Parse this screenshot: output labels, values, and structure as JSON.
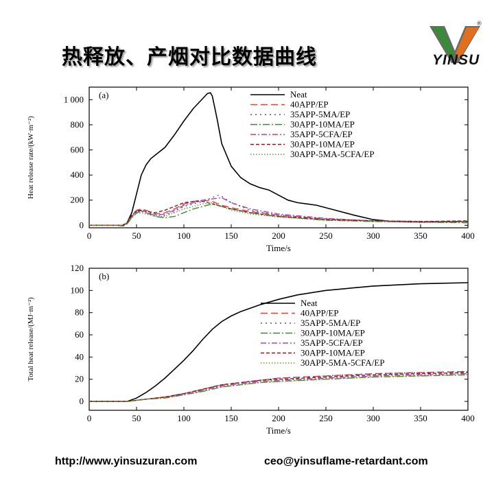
{
  "page": {
    "title": "热释放、产烟对比数据曲线",
    "brand": "YINSU",
    "registered_mark": "®",
    "footer_url": "http://www.yinsuzuran.com",
    "footer_email": "ceo@yinsuflame-retardant.com"
  },
  "colors": {
    "logo_green": "#3a8a3a",
    "logo_orange": "#e07020",
    "logo_gray": "#6a6a6a"
  },
  "chart_data": [
    {
      "type": "line",
      "panel_label": "(a)",
      "xlabel": "Time/s",
      "ylabel": "Heat release rate/(kW·m⁻²)",
      "xlim": [
        0,
        400
      ],
      "ylim": [
        -20,
        1100
      ],
      "xticks": [
        0,
        50,
        100,
        150,
        200,
        250,
        300,
        350,
        400
      ],
      "yticks": [
        0,
        200,
        400,
        600,
        800,
        1000
      ],
      "ytick_labels": [
        "0",
        "200",
        "400",
        "600",
        "800",
        "1 000"
      ],
      "legend_position": "top-right",
      "series": [
        {
          "name": "Neat",
          "color": "#000000",
          "dash": "",
          "x": [
            0,
            30,
            36,
            40,
            45,
            50,
            55,
            60,
            65,
            70,
            80,
            90,
            100,
            110,
            120,
            125,
            128,
            130,
            135,
            140,
            150,
            160,
            170,
            180,
            190,
            200,
            210,
            220,
            230,
            240,
            260,
            280,
            300,
            320,
            350,
            380,
            400
          ],
          "y": [
            0,
            0,
            -3,
            20,
            100,
            250,
            400,
            480,
            530,
            560,
            620,
            720,
            830,
            930,
            1010,
            1050,
            1055,
            1030,
            850,
            650,
            470,
            380,
            330,
            300,
            280,
            240,
            200,
            180,
            170,
            160,
            120,
            80,
            45,
            30,
            25,
            28,
            30
          ]
        },
        {
          "name": "40APP/EP",
          "color": "#d9443a",
          "dash": "10,5",
          "x": [
            0,
            35,
            40,
            45,
            50,
            55,
            60,
            70,
            80,
            90,
            100,
            110,
            120,
            130,
            140,
            150,
            170,
            200,
            250,
            300,
            350,
            400
          ],
          "y": [
            0,
            0,
            20,
            80,
            120,
            130,
            120,
            90,
            100,
            130,
            170,
            190,
            200,
            190,
            160,
            140,
            110,
            80,
            50,
            35,
            30,
            30
          ]
        },
        {
          "name": "35APP-5MA/EP",
          "color": "#4a4ab8",
          "dash": "2,5",
          "x": [
            0,
            35,
            40,
            45,
            50,
            55,
            60,
            70,
            80,
            90,
            100,
            110,
            120,
            130,
            135,
            140,
            150,
            170,
            200,
            250,
            300,
            350,
            400
          ],
          "y": [
            0,
            0,
            15,
            70,
            110,
            120,
            110,
            80,
            80,
            110,
            150,
            170,
            190,
            220,
            240,
            230,
            180,
            120,
            80,
            50,
            35,
            30,
            30
          ]
        },
        {
          "name": "30APP-10MA/EP",
          "color": "#2f8f2f",
          "dash": "10,3,2,3",
          "x": [
            0,
            35,
            40,
            45,
            50,
            55,
            60,
            70,
            80,
            90,
            100,
            110,
            120,
            130,
            140,
            150,
            170,
            200,
            250,
            300,
            350,
            400
          ],
          "y": [
            0,
            0,
            10,
            60,
            100,
            110,
            100,
            70,
            60,
            70,
            100,
            130,
            150,
            170,
            150,
            130,
            100,
            70,
            40,
            30,
            25,
            20
          ]
        },
        {
          "name": "35APP-5CFA/EP",
          "color": "#b040b0",
          "dash": "8,3,2,3",
          "x": [
            0,
            35,
            40,
            45,
            50,
            55,
            60,
            70,
            80,
            90,
            100,
            110,
            120,
            130,
            140,
            150,
            170,
            200,
            250,
            300,
            350,
            400
          ],
          "y": [
            0,
            0,
            15,
            70,
            110,
            115,
            100,
            80,
            90,
            120,
            160,
            180,
            200,
            210,
            220,
            180,
            130,
            90,
            55,
            35,
            30,
            30
          ]
        },
        {
          "name": "30APP-10MA/EP",
          "color": "#7a1e1e",
          "dash": "5,3",
          "x": [
            0,
            35,
            40,
            45,
            50,
            55,
            60,
            70,
            80,
            90,
            100,
            110,
            120,
            130,
            140,
            150,
            170,
            200,
            250,
            300,
            350,
            400
          ],
          "y": [
            0,
            0,
            20,
            80,
            115,
            120,
            110,
            100,
            120,
            150,
            180,
            190,
            190,
            170,
            150,
            130,
            100,
            70,
            45,
            35,
            30,
            35
          ]
        },
        {
          "name": "30APP-5MA-5CFA/EP",
          "color": "#7a8a30",
          "dash": "1.5,2.5",
          "x": [
            0,
            35,
            40,
            45,
            50,
            55,
            60,
            70,
            80,
            90,
            100,
            110,
            120,
            130,
            140,
            150,
            170,
            200,
            250,
            300,
            350,
            400
          ],
          "y": [
            0,
            0,
            15,
            60,
            95,
            100,
            90,
            70,
            70,
            100,
            130,
            150,
            170,
            180,
            150,
            120,
            90,
            65,
            40,
            30,
            25,
            25
          ]
        }
      ]
    },
    {
      "type": "line",
      "panel_label": "(b)",
      "xlabel": "Time/s",
      "ylabel": "Total heat release/(MJ·m⁻²)",
      "xlim": [
        0,
        400
      ],
      "ylim": [
        -8,
        120
      ],
      "xticks": [
        0,
        50,
        100,
        150,
        200,
        250,
        300,
        350,
        400
      ],
      "yticks": [
        0,
        20,
        40,
        60,
        80,
        100,
        120
      ],
      "ytick_labels": [
        "0",
        "20",
        "40",
        "60",
        "80",
        "100",
        "120"
      ],
      "legend_position": "center-right",
      "series": [
        {
          "name": "Neat",
          "color": "#000000",
          "dash": "",
          "x": [
            0,
            40,
            50,
            60,
            70,
            80,
            90,
            100,
            110,
            120,
            130,
            140,
            150,
            160,
            180,
            200,
            220,
            250,
            300,
            350,
            400
          ],
          "y": [
            0,
            0,
            3,
            8,
            14,
            21,
            29,
            37,
            46,
            56,
            65,
            72,
            77,
            81,
            87,
            92,
            96,
            100,
            104,
            106,
            107
          ]
        },
        {
          "name": "40APP/EP",
          "color": "#d9443a",
          "dash": "10,5",
          "x": [
            0,
            40,
            60,
            80,
            100,
            120,
            140,
            160,
            180,
            200,
            250,
            300,
            350,
            400
          ],
          "y": [
            0,
            0,
            2,
            4,
            7,
            11,
            15,
            17,
            19,
            21,
            23,
            25,
            26,
            27
          ]
        },
        {
          "name": "35APP-5MA/EP",
          "color": "#4a4ab8",
          "dash": "2,5",
          "x": [
            0,
            40,
            60,
            80,
            100,
            120,
            140,
            160,
            180,
            200,
            250,
            300,
            350,
            400
          ],
          "y": [
            0,
            0,
            2,
            4,
            7,
            11,
            15,
            17,
            19,
            21,
            23,
            25,
            26,
            27
          ]
        },
        {
          "name": "30APP-10MA/EP",
          "color": "#2f8f2f",
          "dash": "10,3,2,3",
          "x": [
            0,
            40,
            60,
            80,
            100,
            120,
            140,
            160,
            180,
            200,
            250,
            300,
            350,
            400
          ],
          "y": [
            0,
            0,
            2,
            3,
            6,
            9,
            13,
            15,
            17,
            18,
            20,
            22,
            23,
            24
          ]
        },
        {
          "name": "35APP-5CFA/EP",
          "color": "#b040b0",
          "dash": "8,3,2,3",
          "x": [
            0,
            40,
            60,
            80,
            100,
            120,
            140,
            160,
            180,
            200,
            250,
            300,
            350,
            400
          ],
          "y": [
            0,
            0,
            2,
            4,
            6,
            10,
            14,
            16,
            18,
            19,
            21,
            23,
            24,
            25
          ]
        },
        {
          "name": "30APP-10MA/EP",
          "color": "#7a1e1e",
          "dash": "5,3",
          "x": [
            0,
            40,
            60,
            80,
            100,
            120,
            140,
            160,
            180,
            200,
            250,
            300,
            350,
            400
          ],
          "y": [
            0,
            0,
            2,
            4,
            7,
            11,
            15,
            17,
            19,
            20,
            22,
            24,
            25,
            26
          ]
        },
        {
          "name": "30APP-5MA-5CFA/EP",
          "color": "#7a8a30",
          "dash": "1.5,2.5",
          "x": [
            0,
            40,
            60,
            80,
            100,
            120,
            140,
            160,
            180,
            200,
            250,
            300,
            350,
            400
          ],
          "y": [
            0,
            0,
            2,
            3,
            6,
            9,
            13,
            15,
            17,
            18,
            20,
            22,
            23,
            24
          ]
        }
      ]
    }
  ]
}
